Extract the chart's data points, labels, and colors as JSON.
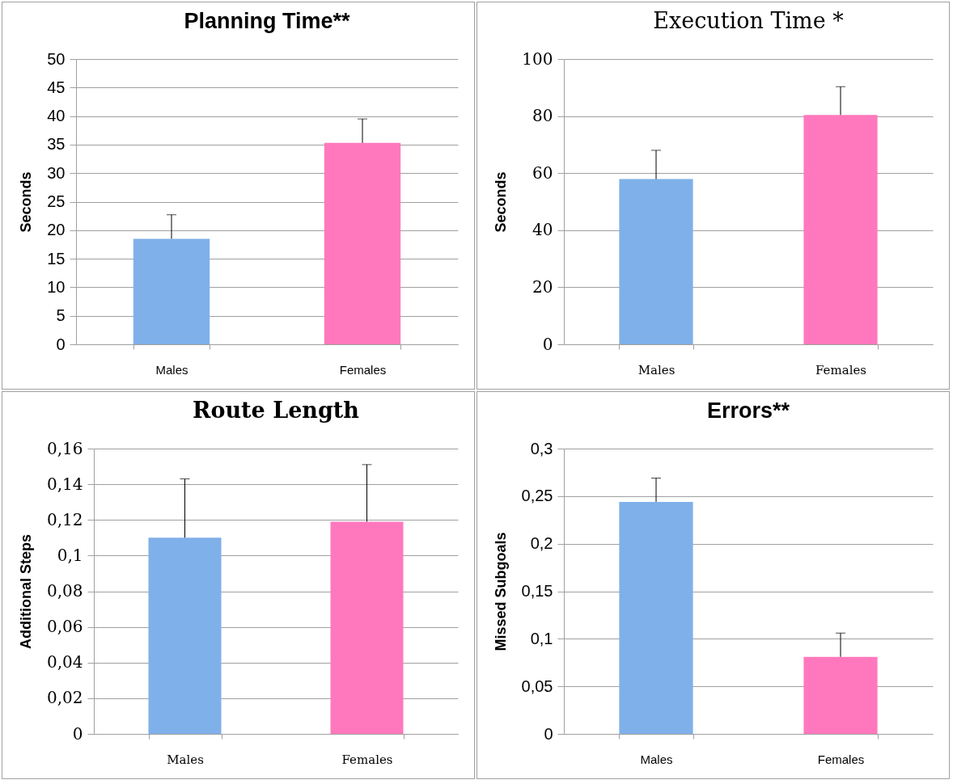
{
  "chart_data": [
    {
      "type": "bar",
      "title": "Planning Time**",
      "ylabel": "Seconds",
      "categories": [
        "Males",
        "Females"
      ],
      "values": [
        18.5,
        35.3
      ],
      "colors": [
        "#7fb0ea",
        "#ff78bd"
      ],
      "errors": [
        [
          18.5,
          22.7
        ],
        [
          35.3,
          39.5
        ]
      ],
      "ylim": [
        0,
        50
      ],
      "yticks": [
        0,
        5,
        10,
        15,
        20,
        25,
        30,
        35,
        40,
        45,
        50
      ],
      "grid": "y",
      "legend": false
    },
    {
      "type": "bar",
      "title": "Execution Time *",
      "ylabel": "Seconds",
      "categories": [
        "Males",
        "Females"
      ],
      "values": [
        57.9,
        80.4
      ],
      "colors": [
        "#7fb0ea",
        "#ff78bd"
      ],
      "errors": [
        [
          57.9,
          68
        ],
        [
          80.4,
          90.3
        ]
      ],
      "ylim": [
        0,
        100
      ],
      "yticks": [
        0,
        20,
        40,
        60,
        80,
        100
      ],
      "grid": "y",
      "legend": false
    },
    {
      "type": "bar",
      "title": "Route Length",
      "ylabel": "Additional Steps",
      "categories": [
        "Males",
        "Females"
      ],
      "values": [
        0.11,
        0.119
      ],
      "colors": [
        "#7fb0ea",
        "#ff78bd"
      ],
      "errors": [
        [
          0.11,
          0.143
        ],
        [
          0.119,
          0.151
        ]
      ],
      "ylim": [
        0,
        0.16
      ],
      "yticks": [
        0,
        {
          "value": 0.02,
          "label": "0,02"
        },
        {
          "value": 0.04,
          "label": "0,04"
        },
        {
          "value": 0.06,
          "label": "0,06"
        },
        {
          "value": 0.08,
          "label": "0,08"
        },
        {
          "value": 0.1,
          "label": "0,1"
        },
        {
          "value": 0.12,
          "label": "0,12"
        },
        {
          "value": 0.14,
          "label": "0,14"
        },
        {
          "value": 0.16,
          "label": "0,16"
        }
      ],
      "grid": "y",
      "legend": false
    },
    {
      "type": "bar",
      "title": "Errors**",
      "ylabel": "Missed Subgoals",
      "categories": [
        "Males",
        "Females"
      ],
      "values": [
        0.244,
        0.081
      ],
      "colors": [
        "#7fb0ea",
        "#ff78bd"
      ],
      "errors": [
        [
          0.244,
          0.269
        ],
        [
          0.081,
          0.106
        ]
      ],
      "ylim": [
        0,
        0.3
      ],
      "yticks": [
        0,
        {
          "value": 0.05,
          "label": "0,05"
        },
        {
          "value": 0.1,
          "label": "0,1"
        },
        {
          "value": 0.15,
          "label": "0,15"
        },
        {
          "value": 0.2,
          "label": "0,2"
        },
        {
          "value": 0.25,
          "label": "0,25"
        },
        {
          "value": 0.3,
          "label": "0,3"
        }
      ],
      "grid": "y",
      "legend": false
    }
  ]
}
